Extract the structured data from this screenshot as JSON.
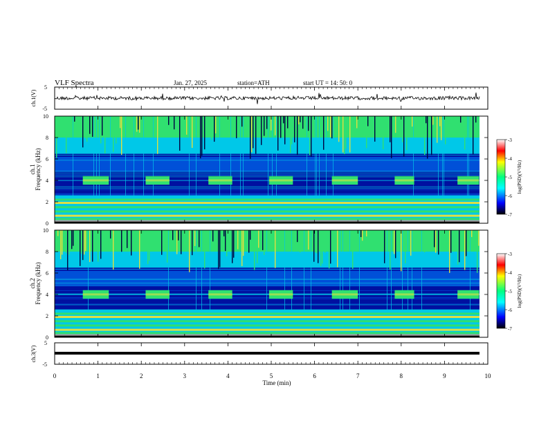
{
  "header": {
    "title": "VLF  Spectra",
    "date": "Jan. 27, 2025",
    "station": "station=ATH",
    "start": "start  UT  =   14: 50: 0"
  },
  "colors": {
    "scale": [
      "#000000",
      "#0000ff",
      "#00ffff",
      "#00ff80",
      "#ffff00",
      "#ff0000",
      "#ffffff"
    ],
    "deep_blue": "#0010a0",
    "mid_blue": "#0050d8",
    "cyan": "#00c8e8",
    "green": "#30e070",
    "yellow": "#e0e040"
  },
  "chart_data": [
    {
      "id": "ch1-waveform",
      "type": "line",
      "ylabel": "ch.1(V)",
      "ylim": [
        -5,
        5
      ],
      "yticks": [
        "5",
        "-5"
      ],
      "xlim": [
        0,
        10
      ],
      "description_series": "broadband noise waveform around 0 V, amplitude ~ +/-1 V with occasional spikes"
    },
    {
      "id": "ch1-spectrogram",
      "type": "heatmap",
      "ylabel_line1": "ch.1",
      "ylabel_line2": "Frequency  (kHz)",
      "ylim": [
        0,
        10
      ],
      "yticks": [
        "0",
        "2",
        "4",
        "6",
        "8",
        "10"
      ],
      "xlim": [
        0,
        10
      ],
      "colorbar": {
        "label": "log(PSD)(V²/Hz)",
        "range": [
          -7,
          -3
        ],
        "ticks": [
          "-3",
          "-4",
          "-5",
          "-6",
          "-7"
        ]
      },
      "tone_bursts_min": [
        [
          0.65,
          1.25
        ],
        [
          2.1,
          2.65
        ],
        [
          3.55,
          4.1
        ],
        [
          4.95,
          5.5
        ],
        [
          6.4,
          7.0
        ],
        [
          7.85,
          8.3
        ],
        [
          9.3,
          9.8
        ]
      ],
      "tone_band_khz": [
        3.6,
        4.4
      ]
    },
    {
      "id": "ch2-spectrogram",
      "type": "heatmap",
      "ylabel_line1": "ch.2",
      "ylabel_line2": "Frequency  (kHz)",
      "ylim": [
        0,
        10
      ],
      "yticks": [
        "0",
        "2",
        "4",
        "6",
        "8",
        "10"
      ],
      "xlim": [
        0,
        10
      ],
      "colorbar": {
        "label": "log(PSD)(V²/Hz)",
        "range": [
          -7,
          -3
        ],
        "ticks": [
          "-3",
          "-4",
          "-5",
          "-6",
          "-7"
        ]
      },
      "tone_bursts_min": [
        [
          0.65,
          1.25
        ],
        [
          2.1,
          2.65
        ],
        [
          3.55,
          4.1
        ],
        [
          4.95,
          5.5
        ],
        [
          6.4,
          7.0
        ],
        [
          7.85,
          8.3
        ],
        [
          9.3,
          9.8
        ]
      ],
      "tone_band_khz": [
        3.6,
        4.4
      ]
    },
    {
      "id": "ch3-waveform",
      "type": "line",
      "ylabel": "ch.3(V)",
      "ylim": [
        -5,
        5
      ],
      "yticks": [
        "5",
        "-5"
      ],
      "xlim": [
        0,
        10
      ],
      "xlabel": "Time  (min)",
      "xticks": [
        "0",
        "1",
        "2",
        "3",
        "4",
        "5",
        "6",
        "7",
        "8",
        "9",
        "10"
      ],
      "constant_value": 0
    }
  ]
}
